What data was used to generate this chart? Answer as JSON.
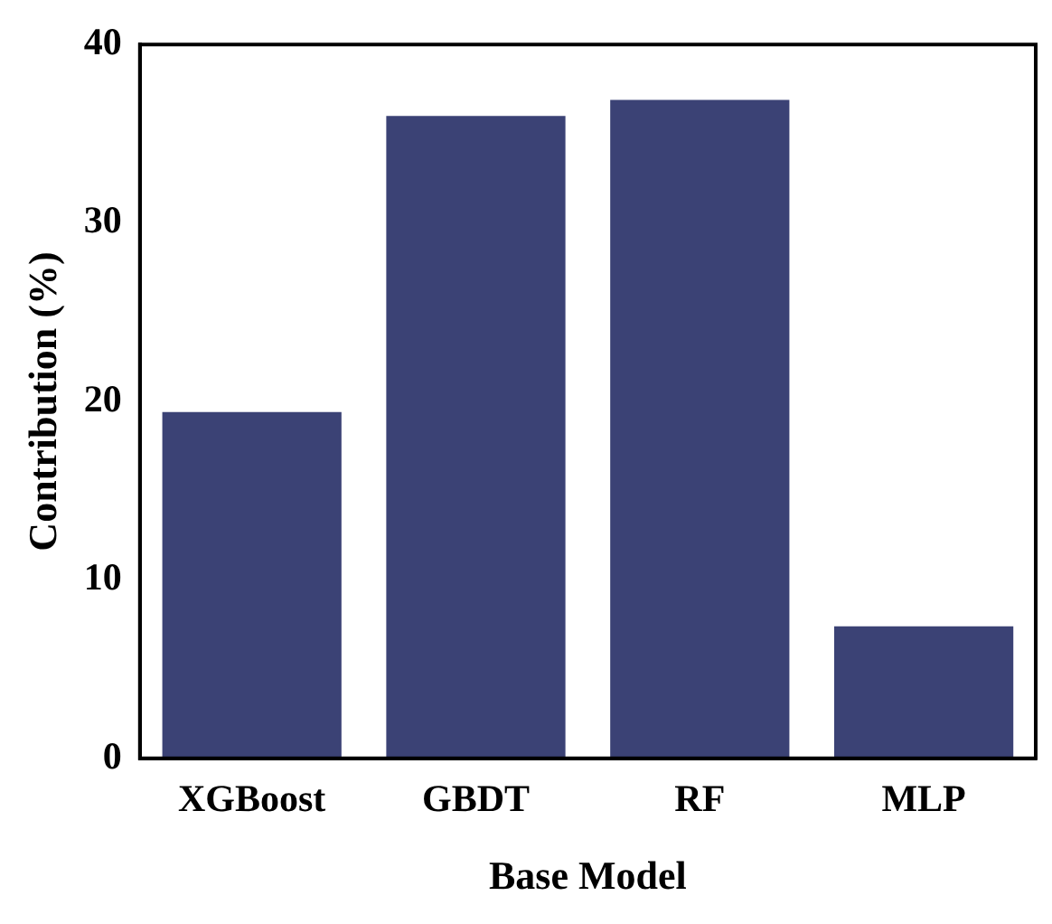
{
  "chart_data": {
    "type": "bar",
    "xlabel": "Base Model",
    "ylabel": "Contribution (%)",
    "categories": [
      "XGBoost",
      "GBDT",
      "RF",
      "MLP"
    ],
    "values": [
      19.4,
      36.0,
      36.9,
      7.4
    ],
    "color": "#3b4275",
    "ylim": [
      0,
      40
    ],
    "yticks": [
      0,
      10,
      20,
      30,
      40
    ],
    "grid": false
  }
}
